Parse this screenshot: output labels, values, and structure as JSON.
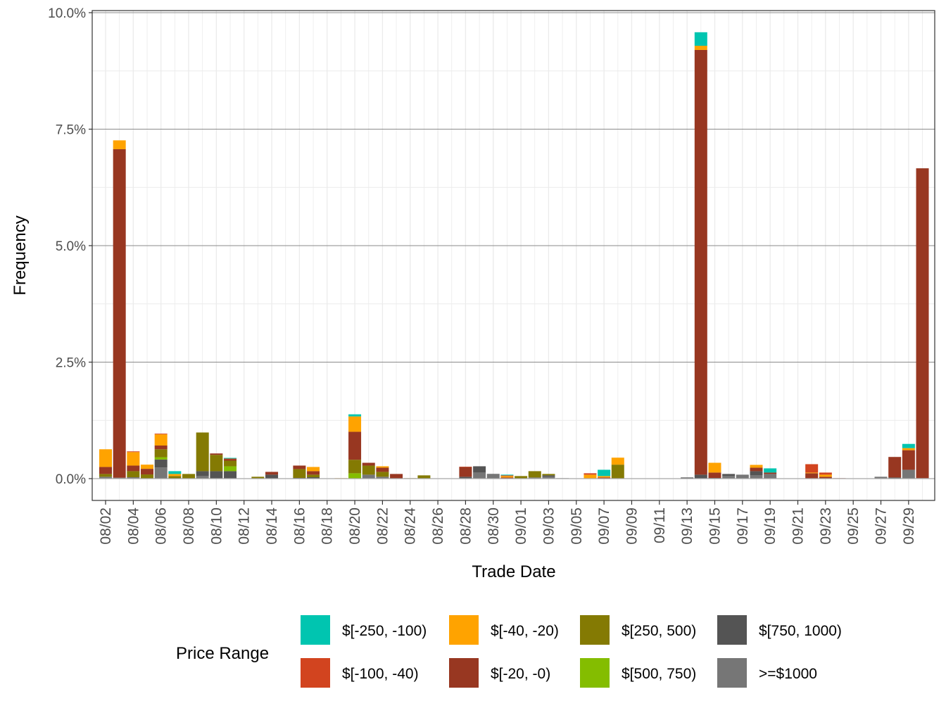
{
  "chart_data": {
    "type": "bar",
    "stacked": true,
    "xlabel": "Trade Date",
    "ylabel": "Frequency",
    "ylim": [
      -0.47,
      10.05
    ],
    "yticks": [
      0,
      2.5,
      5,
      7.5,
      10
    ],
    "ytick_labels": [
      "0.0%",
      "2.5%",
      "5.0%",
      "7.5%",
      "10.0%"
    ],
    "grid": true,
    "legend_title": "Price Range",
    "legend_position": "bottom",
    "categories": [
      "08/02",
      "08/03",
      "08/04",
      "08/05",
      "08/06",
      "08/07",
      "08/08",
      "08/09",
      "08/10",
      "08/11",
      "08/12",
      "08/13",
      "08/14",
      "08/15",
      "08/16",
      "08/17",
      "08/18",
      "08/19",
      "08/20",
      "08/21",
      "08/22",
      "08/23",
      "08/24",
      "08/25",
      "08/26",
      "08/27",
      "08/28",
      "08/29",
      "08/30",
      "08/31",
      "09/01",
      "09/02",
      "09/03",
      "09/04",
      "09/05",
      "09/06",
      "09/07",
      "09/08",
      "09/09",
      "09/10",
      "09/11",
      "09/12",
      "09/13",
      "09/14",
      "09/15",
      "09/16",
      "09/17",
      "09/18",
      "09/19",
      "09/20",
      "09/21",
      "09/22",
      "09/23",
      "09/24",
      "09/25",
      "09/26",
      "09/27",
      "09/28",
      "09/29",
      "09/30"
    ],
    "xtick_labels": [
      "08/02",
      "08/04",
      "08/06",
      "08/08",
      "08/10",
      "08/12",
      "08/14",
      "08/16",
      "08/18",
      "08/20",
      "08/22",
      "08/24",
      "08/26",
      "08/28",
      "08/30",
      "09/01",
      "09/03",
      "09/05",
      "09/07",
      "09/09",
      "09/11",
      "09/13",
      "09/15",
      "09/17",
      "09/19",
      "09/21",
      "09/23",
      "09/25",
      "09/27",
      "09/29"
    ],
    "series": [
      {
        "name": "$[-250, -100)",
        "color": "#00C5B0",
        "values": [
          0,
          0,
          0,
          0,
          0,
          0.06,
          0,
          0,
          0,
          0.015,
          0,
          0,
          0,
          0,
          0,
          0,
          0,
          0,
          0.045,
          0,
          0,
          0,
          0,
          0,
          0,
          0,
          0,
          0,
          0,
          0.015,
          0,
          0,
          0,
          0,
          0,
          0,
          0.135,
          0,
          0,
          0,
          0,
          0,
          0,
          0.29,
          0,
          0,
          0,
          0,
          0.09,
          0,
          0,
          0,
          0,
          0,
          0,
          0,
          0,
          0,
          0.09,
          0
        ]
      },
      {
        "name": "$[-100, -40)",
        "color": "#D2441F",
        "values": [
          0,
          0,
          0.015,
          0,
          0.015,
          0,
          0,
          0,
          0,
          0.015,
          0,
          0,
          0,
          0,
          0,
          0,
          0,
          0,
          0,
          0,
          0,
          0,
          0,
          0,
          0,
          0,
          0.005,
          0,
          0,
          0.015,
          0,
          0,
          0,
          0,
          0,
          0.03,
          0,
          0,
          0,
          0,
          0,
          0,
          0,
          0,
          0,
          0,
          0,
          0,
          0,
          0,
          0,
          0.18,
          0.045,
          0,
          0,
          0,
          0,
          0,
          0,
          0
        ]
      },
      {
        "name": "$[-40, -20)",
        "color": "#FFA300",
        "values": [
          0.38,
          0.19,
          0.29,
          0.09,
          0.24,
          0.045,
          0,
          0,
          0,
          0,
          0,
          0,
          0,
          0,
          0,
          0.09,
          0,
          0.01,
          0.33,
          0,
          0.03,
          0,
          0,
          0,
          0,
          0,
          0,
          0,
          0,
          0.03,
          0,
          0,
          0,
          0,
          0,
          0.085,
          0.03,
          0.15,
          0,
          0,
          0,
          0,
          0,
          0.09,
          0.21,
          0,
          0,
          0.06,
          0,
          0,
          0,
          0.015,
          0.045,
          0,
          0,
          0,
          0,
          0,
          0.045,
          0
        ]
      },
      {
        "name": "$[-20, -0)",
        "color": "#983721",
        "values": [
          0.15,
          7.05,
          0.12,
          0.12,
          0.08,
          0,
          0,
          0,
          0.03,
          0.03,
          0,
          0,
          0.06,
          0,
          0.075,
          0.075,
          0,
          0,
          0.6,
          0.06,
          0.09,
          0.1,
          0,
          0,
          0,
          0,
          0.21,
          0,
          0,
          0.025,
          0,
          0,
          0,
          0,
          0,
          0,
          0.025,
          0,
          0,
          0,
          0,
          0,
          0,
          9.115,
          0.115,
          0,
          0,
          0.075,
          0.03,
          0,
          0,
          0.115,
          0.04,
          0.01,
          0,
          0,
          0,
          0.44,
          0.42,
          6.65
        ]
      },
      {
        "name": "$[250, 500)",
        "color": "#847A03",
        "values": [
          0.06,
          0,
          0.13,
          0.09,
          0.17,
          0.055,
          0.1,
          0.83,
          0.35,
          0.12,
          0,
          0.04,
          0,
          0,
          0.19,
          0.055,
          0,
          0,
          0.29,
          0.195,
          0.105,
          0,
          0.01,
          0.07,
          0,
          0,
          0,
          0,
          0,
          0,
          0.055,
          0.135,
          0.03,
          0,
          0,
          0,
          0,
          0.3,
          0,
          0,
          0,
          0,
          0,
          0,
          0,
          0,
          0,
          0,
          0,
          0,
          0,
          0,
          0,
          0,
          0,
          0,
          0,
          0,
          0,
          0
        ]
      },
      {
        "name": "$[500, 750)",
        "color": "#84BD00",
        "values": [
          0,
          0,
          0,
          0,
          0.05,
          0,
          0,
          0,
          0,
          0.105,
          0,
          0,
          0,
          0,
          0,
          0,
          0,
          0,
          0.115,
          0,
          0,
          0,
          0,
          0,
          0,
          0,
          0,
          0,
          0,
          0,
          0,
          0,
          0,
          0,
          0,
          0,
          0,
          0,
          0,
          0,
          0,
          0,
          0,
          0,
          0,
          0,
          0,
          0,
          0,
          0,
          0,
          0,
          0,
          0,
          0,
          0,
          0,
          0,
          0,
          0
        ]
      },
      {
        "name": "$[750, 1000)",
        "color": "#545454",
        "values": [
          0,
          0,
          0,
          0,
          0.17,
          0,
          0,
          0.105,
          0.16,
          0.16,
          0,
          0,
          0.085,
          0,
          0.015,
          0.03,
          0,
          0,
          0,
          0,
          0,
          0,
          0,
          0,
          0,
          0,
          0.04,
          0.135,
          0.015,
          0,
          0,
          0,
          0.03,
          0.01,
          0,
          0,
          0,
          0,
          0,
          0,
          0,
          0,
          0.025,
          0.085,
          0.015,
          0.045,
          0,
          0.09,
          0,
          0,
          0,
          0,
          0,
          0,
          0,
          0,
          0,
          0.025,
          0,
          0
        ]
      },
      {
        "name": ">=$1000",
        "color": "#767676",
        "values": [
          0.04,
          0.02,
          0.03,
          0,
          0.24,
          0,
          0,
          0.055,
          0,
          0,
          0,
          0,
          0,
          0,
          0,
          0,
          0,
          0,
          0,
          0.085,
          0.04,
          0,
          0,
          0,
          0,
          0,
          0,
          0.13,
          0.085,
          0,
          0,
          0.025,
          0.04,
          0,
          0,
          0,
          0,
          0,
          0,
          0,
          0,
          0,
          0,
          0,
          0,
          0.055,
          0.085,
          0.07,
          0.1,
          0,
          0,
          0,
          0,
          0,
          0,
          0,
          0.04,
          0,
          0.19,
          0.01
        ]
      }
    ],
    "stack_order_bottom_to_top": [
      ">=$1000",
      "$[750, 1000)",
      "$[500, 750)",
      "$[250, 500)",
      "$[-20, -0)",
      "$[-40, -20)",
      "$[-100, -40)",
      "$[-250, -100)"
    ]
  }
}
